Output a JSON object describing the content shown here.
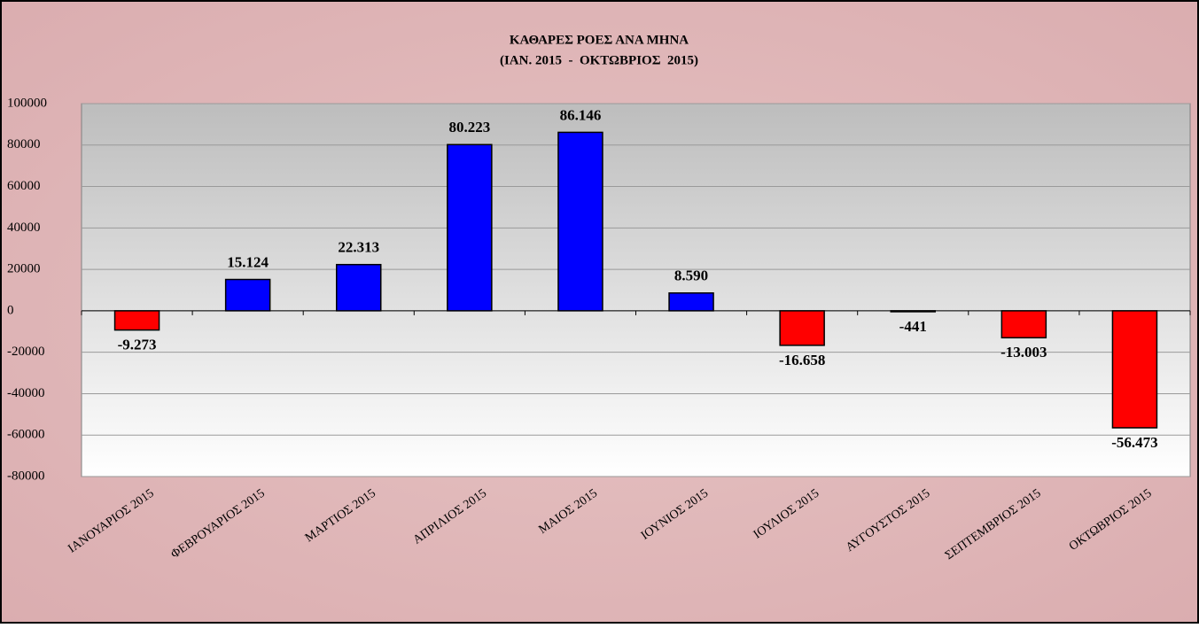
{
  "chart_data": {
    "type": "bar",
    "title": "ΚΑΘΑΡΕΣ ΡΟΕΣ ΑΝΑ ΜΗΝΑ",
    "subtitle": "(ΙΑΝ. 2015  -  ΟΚΤΩΒΡΙΟΣ  2015)",
    "categories": [
      "ΙΑΝΟΥΑΡΙΟΣ 2015",
      "ΦΕΒΡΟΥΑΡΙΟΣ 2015",
      "ΜΑΡΤΙΟΣ 2015",
      "ΑΠΡΙΛΙΟΣ 2015",
      "ΜΑΙΟΣ 2015",
      "ΙΟΥΝΙΟΣ 2015",
      "ΙΟΥΛΙΟΣ 2015",
      "ΑΥΓΟΥΣΤΟΣ 2015",
      "ΣΕΠΤΕΜΒΡΙΟΣ 2015",
      "ΟΚΤΩΒΡΙΟΣ 2015"
    ],
    "values": [
      -9273,
      15124,
      22313,
      80223,
      86146,
      8590,
      -16658,
      -441,
      -13003,
      -56473
    ],
    "value_labels": [
      "-9.273",
      "15.124",
      "22.313",
      "80.223",
      "86.146",
      "8.590",
      "-16.658",
      "-441",
      "-13.003",
      "-56.473"
    ],
    "color_positive": "#0000ff",
    "color_negative": "#ff0000",
    "ylim": [
      -80000,
      100000
    ],
    "yticks": [
      -80000,
      -60000,
      -40000,
      -20000,
      0,
      20000,
      40000,
      60000,
      80000,
      100000
    ],
    "grid": true
  }
}
